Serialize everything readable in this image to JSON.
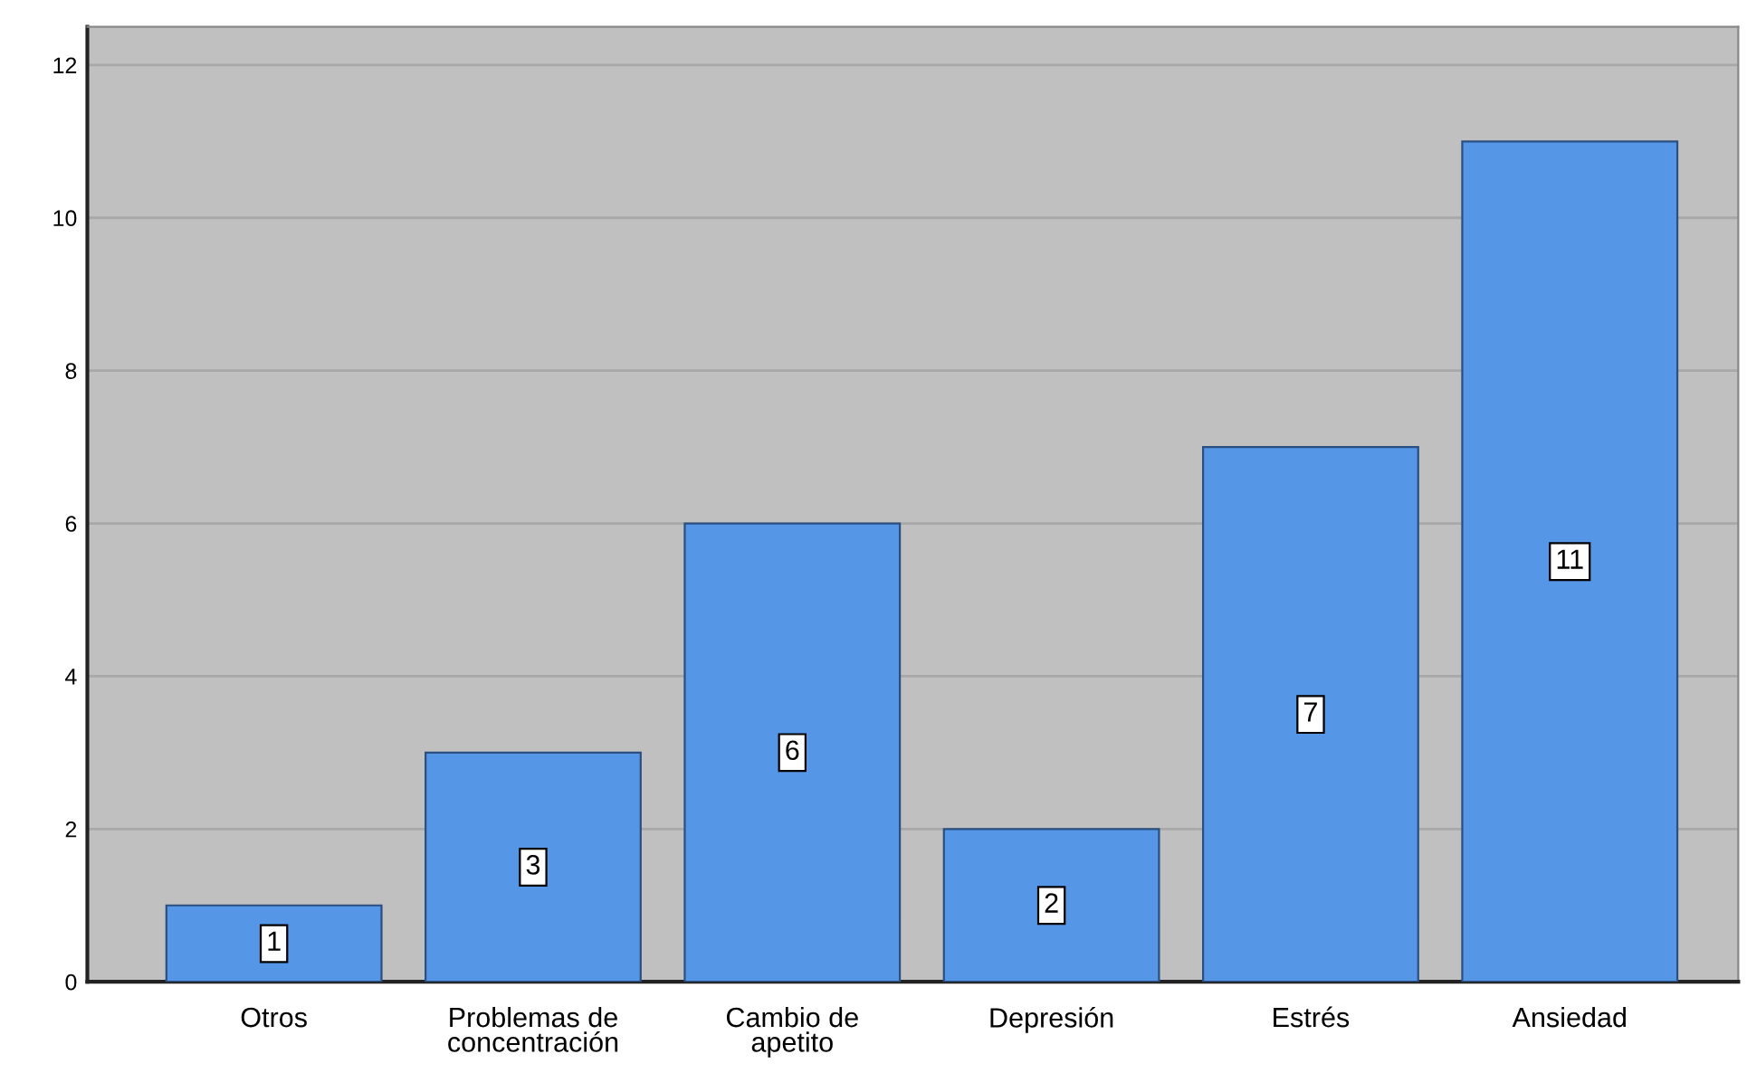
{
  "chart_data": {
    "type": "bar",
    "categories": [
      "Otros",
      "Problemas de concentración",
      "Cambio de apetito",
      "Depresión",
      "Estrés",
      "Ansiedad"
    ],
    "values": [
      1,
      3,
      6,
      2,
      7,
      11
    ],
    "color": "#5596e6",
    "ylim": [
      0,
      12.5
    ],
    "yticks": [
      0,
      2,
      4,
      6,
      8,
      10,
      12
    ],
    "grid": "y",
    "data_labels": true
  }
}
